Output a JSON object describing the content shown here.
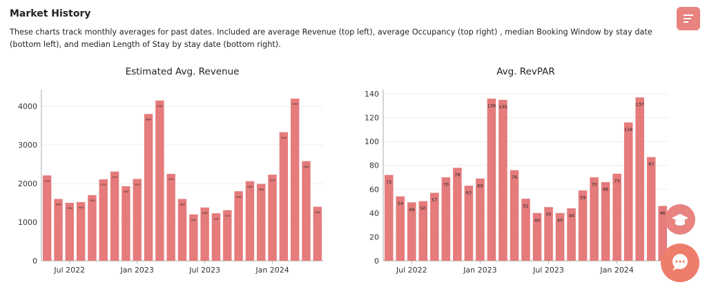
{
  "header": {
    "title": "Market History",
    "description": "These charts track monthly averages for past dates. Included are average Revenue (top left), average Occupancy (top right) , median Booking Window by stay date (bottom left), and median Length of Stay by stay date (bottom right)."
  },
  "chart_data": [
    {
      "type": "bar",
      "title": "Estimated Avg. Revenue",
      "color": "#e57b7b",
      "grid": true,
      "categories": [
        null,
        null,
        "Jul 2022",
        null,
        null,
        null,
        null,
        null,
        "Jan 2023",
        null,
        null,
        null,
        null,
        null,
        "Jul 2023",
        null,
        null,
        null,
        null,
        null,
        "Jan 2024",
        null,
        null,
        null,
        null
      ],
      "values": [
        2210,
        1600,
        1500,
        1520,
        1700,
        2110,
        2310,
        1930,
        2120,
        3800,
        4150,
        2250,
        1600,
        1200,
        1380,
        1230,
        1310,
        1800,
        2060,
        1990,
        2230,
        3330,
        4200,
        2580,
        1400
      ],
      "ylim": [
        0,
        4430
      ],
      "yticks": [
        0,
        1000,
        2000,
        3000,
        4000
      ]
    },
    {
      "type": "bar",
      "title": "Avg. RevPAR",
      "color": "#e57b7b",
      "grid": true,
      "categories": [
        null,
        null,
        "Jul 2022",
        null,
        null,
        null,
        null,
        null,
        "Jan 2023",
        null,
        null,
        null,
        null,
        null,
        "Jul 2023",
        null,
        null,
        null,
        null,
        null,
        "Jan 2024",
        null,
        null,
        null,
        null
      ],
      "values": [
        72,
        54,
        49,
        50,
        57,
        70,
        78,
        63,
        69,
        136,
        135,
        76,
        52,
        40,
        45,
        40,
        44,
        59,
        70,
        66,
        73,
        116,
        137,
        87,
        46
      ],
      "ylim": [
        0,
        143.5
      ],
      "yticks": [
        0,
        20,
        40,
        60,
        80,
        100,
        120,
        140
      ]
    }
  ]
}
